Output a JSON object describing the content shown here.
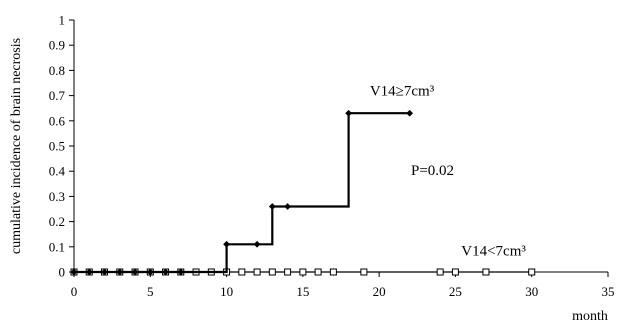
{
  "chart_data": {
    "type": "line",
    "step": true,
    "xlabel": "month",
    "ylabel": "cumulative incidence of brain necrosis",
    "xlim": [
      0,
      35
    ],
    "ylim": [
      0,
      1
    ],
    "xticks": [
      "0",
      "5",
      "10",
      "15",
      "20",
      "25",
      "30",
      "35"
    ],
    "yticks": [
      "0",
      "0.1",
      "0.2",
      "0.3",
      "0.4",
      "0.5",
      "0.6",
      "0.7",
      "0.8",
      "0.9",
      "1"
    ],
    "grid": false,
    "legend": "none",
    "series": [
      {
        "name": "V14≥7cm³",
        "marker": "filled-diamond",
        "color": "#000000",
        "points": [
          {
            "x": 0,
            "y": 0
          },
          {
            "x": 1,
            "y": 0
          },
          {
            "x": 2,
            "y": 0
          },
          {
            "x": 3,
            "y": 0
          },
          {
            "x": 4,
            "y": 0
          },
          {
            "x": 5,
            "y": 0
          },
          {
            "x": 6,
            "y": 0
          },
          {
            "x": 7,
            "y": 0
          },
          {
            "x": 10,
            "y": 0.11
          },
          {
            "x": 12,
            "y": 0.11
          },
          {
            "x": 13,
            "y": 0.26
          },
          {
            "x": 14,
            "y": 0.26
          },
          {
            "x": 18,
            "y": 0.63
          },
          {
            "x": 22,
            "y": 0.63
          }
        ],
        "step_path": [
          [
            0,
            0
          ],
          [
            10,
            0
          ],
          [
            10,
            0.11
          ],
          [
            13,
            0.11
          ],
          [
            13,
            0.26
          ],
          [
            18,
            0.26
          ],
          [
            18,
            0.63
          ],
          [
            22,
            0.63
          ]
        ]
      },
      {
        "name": "V14<7cm³",
        "marker": "open-square",
        "color": "#000000",
        "points": [
          {
            "x": 0,
            "y": 0
          },
          {
            "x": 1,
            "y": 0
          },
          {
            "x": 2,
            "y": 0
          },
          {
            "x": 3,
            "y": 0
          },
          {
            "x": 4,
            "y": 0
          },
          {
            "x": 5,
            "y": 0
          },
          {
            "x": 6,
            "y": 0
          },
          {
            "x": 7,
            "y": 0
          },
          {
            "x": 8,
            "y": 0
          },
          {
            "x": 9,
            "y": 0
          },
          {
            "x": 10,
            "y": 0
          },
          {
            "x": 11,
            "y": 0
          },
          {
            "x": 12,
            "y": 0
          },
          {
            "x": 13,
            "y": 0
          },
          {
            "x": 14,
            "y": 0
          },
          {
            "x": 15,
            "y": 0
          },
          {
            "x": 16,
            "y": 0
          },
          {
            "x": 17,
            "y": 0
          },
          {
            "x": 19,
            "y": 0
          },
          {
            "x": 24,
            "y": 0
          },
          {
            "x": 25,
            "y": 0
          },
          {
            "x": 27,
            "y": 0
          },
          {
            "x": 30,
            "y": 0
          }
        ],
        "step_path": [
          [
            0,
            0
          ],
          [
            30,
            0
          ]
        ]
      }
    ],
    "annotations": [
      {
        "id": "label-high",
        "text": "V14≥7cm³",
        "x": 21.5,
        "y": 0.7
      },
      {
        "id": "p-value",
        "text": "P=0.02",
        "x": 23.5,
        "y": 0.385
      },
      {
        "id": "label-low",
        "text": "V14<7cm³",
        "x": 27.5,
        "y": 0.065
      }
    ]
  }
}
